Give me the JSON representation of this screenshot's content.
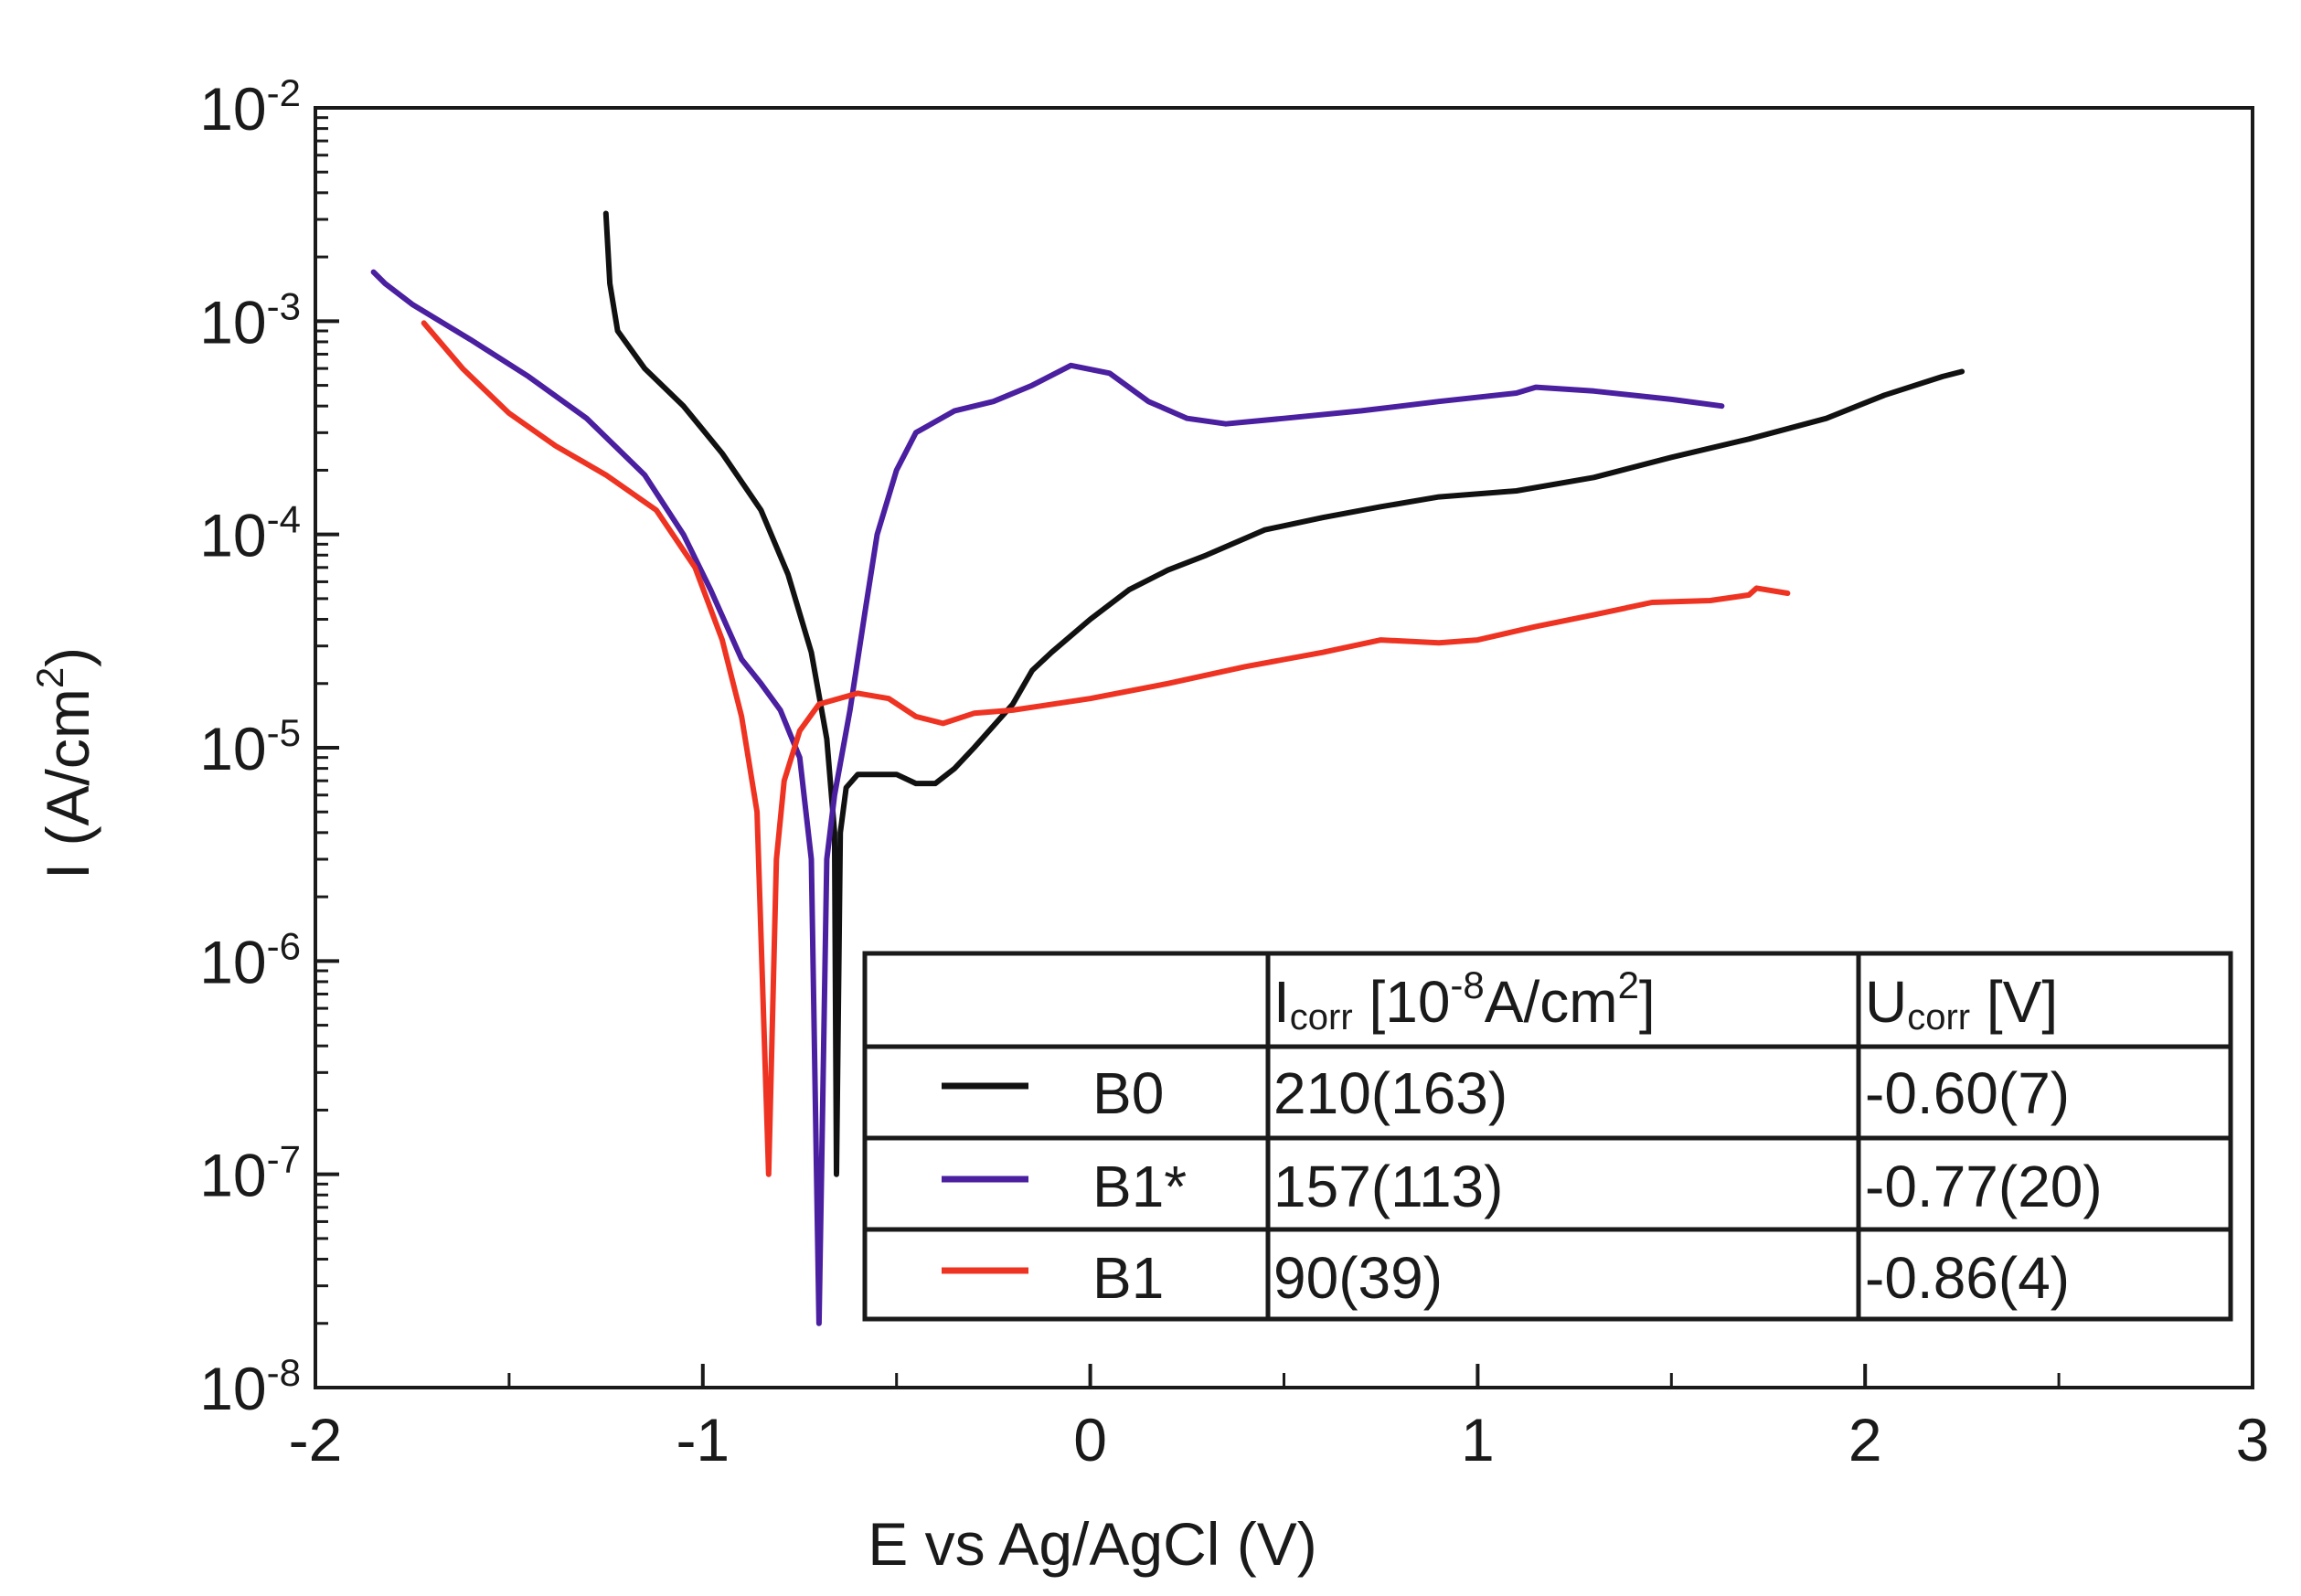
{
  "chart_data": {
    "type": "line",
    "yscale": "log",
    "xlabel": "E vs Ag/AgCl (V)",
    "ylabel_main": "I (A/cm",
    "ylabel_sup": "2",
    "ylabel_close": ")",
    "xlim": [
      -2,
      3
    ],
    "ylim": [
      1e-08,
      0.01
    ],
    "x_ticks": [
      {
        "v": -2,
        "label": "-2"
      },
      {
        "v": -1,
        "label": "-1"
      },
      {
        "v": 0,
        "label": "0"
      },
      {
        "v": 1,
        "label": "1"
      },
      {
        "v": 2,
        "label": "2"
      },
      {
        "v": 3,
        "label": "3"
      }
    ],
    "y_ticks": [
      {
        "exp": -2,
        "base": "10",
        "sup": "-2"
      },
      {
        "exp": -3,
        "base": "10",
        "sup": "-3"
      },
      {
        "exp": -4,
        "base": "10",
        "sup": "-4"
      },
      {
        "exp": -5,
        "base": "10",
        "sup": "-5"
      },
      {
        "exp": -6,
        "base": "10",
        "sup": "-6"
      },
      {
        "exp": -7,
        "base": "10",
        "sup": "-7"
      },
      {
        "exp": -8,
        "base": "10",
        "sup": "-8"
      }
    ],
    "series": [
      {
        "name": "B0",
        "color": "#111111",
        "points": [
          [
            -1.25,
            0.0032
          ],
          [
            -1.24,
            0.0015
          ],
          [
            -1.22,
            0.0009
          ],
          [
            -1.15,
            0.0006
          ],
          [
            -1.05,
            0.0004
          ],
          [
            -0.95,
            0.00024
          ],
          [
            -0.85,
            0.00013
          ],
          [
            -0.78,
            6.5e-05
          ],
          [
            -0.72,
            2.8e-05
          ],
          [
            -0.68,
            1.1e-05
          ],
          [
            -0.66,
            4e-06
          ],
          [
            -0.655,
            1e-07
          ],
          [
            -0.645,
            4e-06
          ],
          [
            -0.63,
            6.5e-06
          ],
          [
            -0.6,
            7.5e-06
          ],
          [
            -0.5,
            7.5e-06
          ],
          [
            -0.45,
            6.8e-06
          ],
          [
            -0.4,
            6.8e-06
          ],
          [
            -0.35,
            8e-06
          ],
          [
            -0.3,
            1e-05
          ],
          [
            -0.2,
            1.6e-05
          ],
          [
            -0.15,
            2.3e-05
          ],
          [
            -0.1,
            2.8e-05
          ],
          [
            0.0,
            4e-05
          ],
          [
            0.1,
            5.5e-05
          ],
          [
            0.2,
            6.8e-05
          ],
          [
            0.3,
            8e-05
          ],
          [
            0.45,
            0.000105
          ],
          [
            0.6,
            0.00012
          ],
          [
            0.75,
            0.000135
          ],
          [
            0.9,
            0.00015
          ],
          [
            1.1,
            0.00016
          ],
          [
            1.3,
            0.000185
          ],
          [
            1.5,
            0.00023
          ],
          [
            1.7,
            0.00028
          ],
          [
            1.9,
            0.00035
          ],
          [
            2.05,
            0.00045
          ],
          [
            2.2,
            0.00055
          ],
          [
            2.25,
            0.00058
          ]
        ]
      },
      {
        "name": "B1*",
        "color": "#4a1fa0",
        "points": [
          [
            -1.85,
            0.0017
          ],
          [
            -1.82,
            0.0015
          ],
          [
            -1.75,
            0.0012
          ],
          [
            -1.6,
            0.00082
          ],
          [
            -1.45,
            0.00055
          ],
          [
            -1.3,
            0.00035
          ],
          [
            -1.15,
            0.00019
          ],
          [
            -1.05,
            0.0001
          ],
          [
            -0.98,
            5.5e-05
          ],
          [
            -0.9,
            2.6e-05
          ],
          [
            -0.85,
            2e-05
          ],
          [
            -0.8,
            1.5e-05
          ],
          [
            -0.75,
            9e-06
          ],
          [
            -0.72,
            3e-06
          ],
          [
            -0.7,
            2e-08
          ],
          [
            -0.68,
            3e-06
          ],
          [
            -0.66,
            6e-06
          ],
          [
            -0.62,
            1.5e-05
          ],
          [
            -0.58,
            4.5e-05
          ],
          [
            -0.55,
            0.0001
          ],
          [
            -0.5,
            0.0002
          ],
          [
            -0.45,
            0.0003
          ],
          [
            -0.35,
            0.00038
          ],
          [
            -0.25,
            0.00042
          ],
          [
            -0.15,
            0.0005
          ],
          [
            -0.05,
            0.00062
          ],
          [
            0.05,
            0.00057
          ],
          [
            0.15,
            0.00042
          ],
          [
            0.25,
            0.00035
          ],
          [
            0.35,
            0.00033
          ],
          [
            0.5,
            0.00035
          ],
          [
            0.7,
            0.00038
          ],
          [
            0.9,
            0.00042
          ],
          [
            1.1,
            0.00046
          ],
          [
            1.15,
            0.00049
          ],
          [
            1.3,
            0.00047
          ],
          [
            1.5,
            0.00043
          ],
          [
            1.63,
            0.0004
          ]
        ]
      },
      {
        "name": "B1",
        "color": "#ee3322",
        "points": [
          [
            -1.72,
            0.00098
          ],
          [
            -1.62,
            0.0006
          ],
          [
            -1.5,
            0.00037
          ],
          [
            -1.38,
            0.00026
          ],
          [
            -1.25,
            0.00019
          ],
          [
            -1.12,
            0.00013
          ],
          [
            -1.02,
            7e-05
          ],
          [
            -0.95,
            3.2e-05
          ],
          [
            -0.9,
            1.4e-05
          ],
          [
            -0.86,
            5e-06
          ],
          [
            -0.83,
            1e-07
          ],
          [
            -0.81,
            3e-06
          ],
          [
            -0.79,
            7e-06
          ],
          [
            -0.75,
            1.2e-05
          ],
          [
            -0.7,
            1.6e-05
          ],
          [
            -0.6,
            1.8e-05
          ],
          [
            -0.52,
            1.7e-05
          ],
          [
            -0.45,
            1.4e-05
          ],
          [
            -0.38,
            1.3e-05
          ],
          [
            -0.3,
            1.45e-05
          ],
          [
            -0.2,
            1.5e-05
          ],
          [
            0.0,
            1.7e-05
          ],
          [
            0.2,
            2e-05
          ],
          [
            0.4,
            2.4e-05
          ],
          [
            0.6,
            2.8e-05
          ],
          [
            0.75,
            3.2e-05
          ],
          [
            0.9,
            3.1e-05
          ],
          [
            1.0,
            3.2e-05
          ],
          [
            1.15,
            3.7e-05
          ],
          [
            1.3,
            4.2e-05
          ],
          [
            1.45,
            4.8e-05
          ],
          [
            1.6,
            4.9e-05
          ],
          [
            1.7,
            5.2e-05
          ],
          [
            1.72,
            5.6e-05
          ],
          [
            1.8,
            5.3e-05
          ]
        ]
      }
    ],
    "legend_table": {
      "col_icorr": {
        "main": "I",
        "sub": "corr",
        "rest1": " [10",
        "sup1": "-8",
        "rest2": "A/cm",
        "sup2": "2",
        "rest3": "]"
      },
      "col_ucorr": {
        "main": "U",
        "sub": "corr",
        "rest": " [V]"
      },
      "rows": [
        {
          "name": "B0",
          "color": "#111111",
          "icorr": "210(163)",
          "ucorr": "-0.60(7)"
        },
        {
          "name": "B1*",
          "color": "#4a1fa0",
          "icorr": "157(113)",
          "ucorr": "-0.77(20)"
        },
        {
          "name": "B1",
          "color": "#ee3322",
          "icorr": "90(39)",
          "ucorr": "-0.86(4)"
        }
      ]
    }
  }
}
